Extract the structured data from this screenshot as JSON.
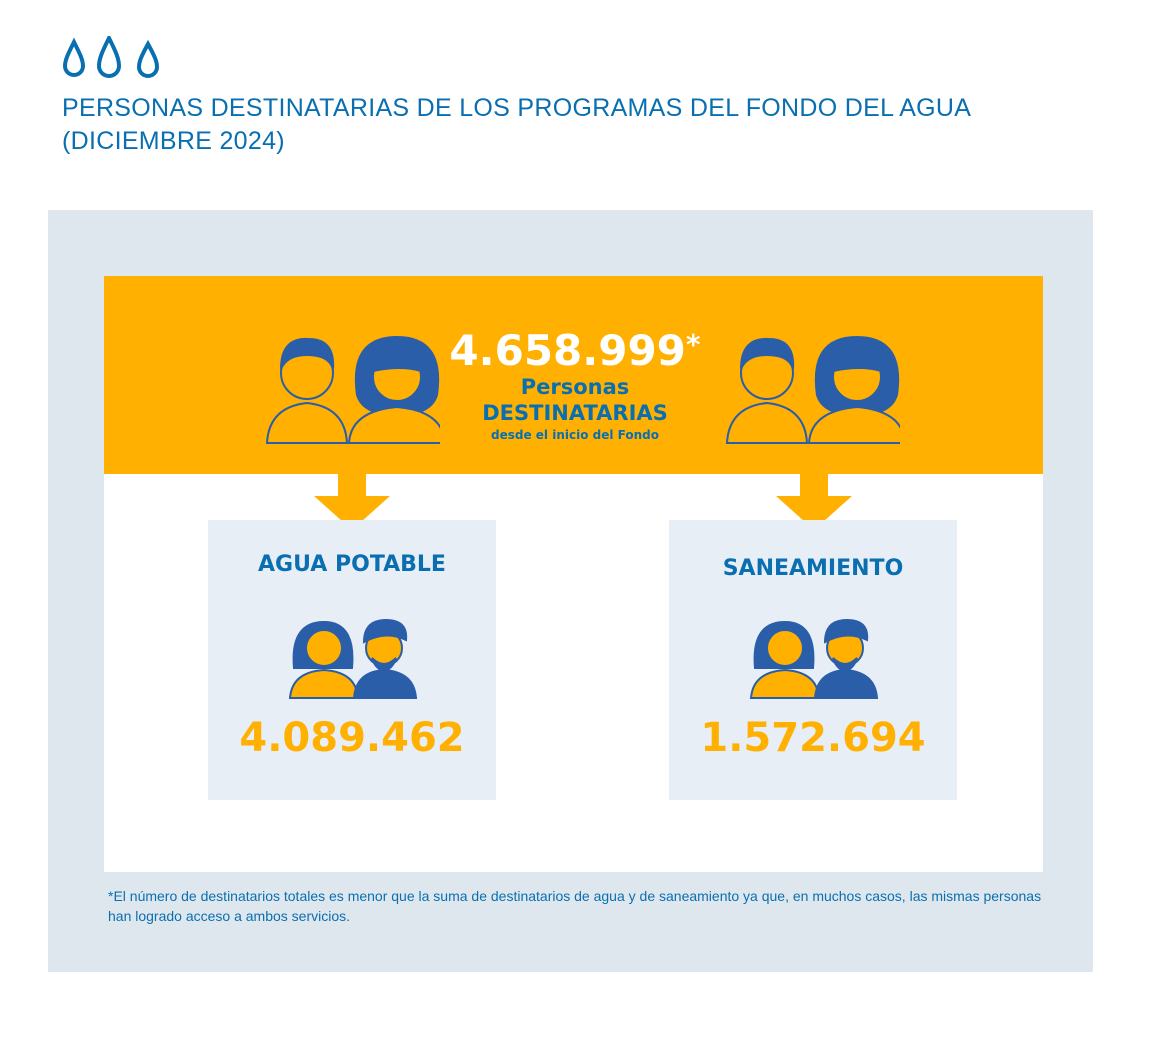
{
  "header": {
    "icon": "water-drops-icon",
    "title_line1": "PERSONAS DESTINATARIAS DE LOS PROGRAMAS DEL FONDO DEL AGUA",
    "title_line2": "(DICIEMBRE 2024)"
  },
  "total": {
    "value": "4.658.999",
    "asterisk": "*",
    "label1": "Personas",
    "label2": "DESTINATARIAS",
    "label3": "desde el inicio del Fondo"
  },
  "categories": [
    {
      "title": "AGUA POTABLE",
      "value": "4.089.462"
    },
    {
      "title": "SANEAMIENTO",
      "value": "1.572.694"
    }
  ],
  "footnote": "*El número de destinatarios totales es menor que la suma de destinatarios de agua y de saneamiento ya que, en muchos casos, las mismas personas han logrado acceso a ambos servicios.",
  "colors": {
    "blue": "#0a6fb0",
    "orange": "#ffb000",
    "panel": "#dfe7ee",
    "box": "#e8eef6"
  }
}
